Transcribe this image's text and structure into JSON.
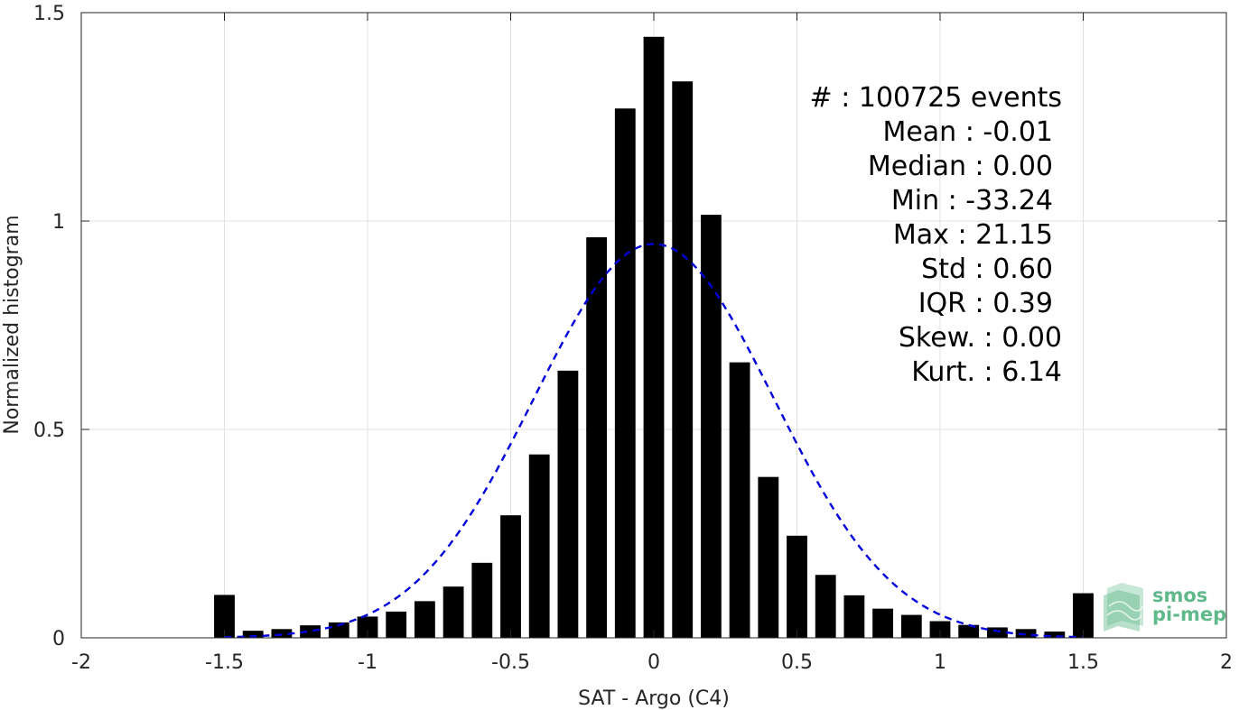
{
  "chart_data": {
    "type": "bar",
    "xlabel": "SAT - Argo (C4)",
    "ylabel": "Normalized histogram",
    "xlim": [
      -2,
      2
    ],
    "ylim": [
      0,
      1.5
    ],
    "xticks": [
      "-2",
      "-1.5",
      "-1",
      "-0.5",
      "0",
      "0.5",
      "1",
      "1.5",
      "2"
    ],
    "yticks": [
      "0",
      "0.5",
      "1",
      "1.5"
    ],
    "grid": true,
    "bar_color": "#000000",
    "bin_width": 0.1,
    "x": [
      -1.5,
      -1.4,
      -1.3,
      -1.2,
      -1.1,
      -1.0,
      -0.9,
      -0.8,
      -0.7,
      -0.6,
      -0.5,
      -0.4,
      -0.3,
      -0.2,
      -0.1,
      0.0,
      0.1,
      0.2,
      0.3,
      0.4,
      0.5,
      0.6,
      0.7,
      0.8,
      0.9,
      1.0,
      1.1,
      1.2,
      1.3,
      1.4,
      1.5
    ],
    "values": [
      0.103,
      0.017,
      0.021,
      0.03,
      0.037,
      0.051,
      0.063,
      0.088,
      0.123,
      0.18,
      0.294,
      0.44,
      0.641,
      0.961,
      1.27,
      1.442,
      1.335,
      1.015,
      0.661,
      0.386,
      0.245,
      0.151,
      0.102,
      0.07,
      0.055,
      0.04,
      0.031,
      0.025,
      0.021,
      0.015,
      0.107
    ],
    "fit_curve": {
      "type": "gaussian",
      "color": "#0000dd",
      "style": "dashed",
      "peak": 0.945,
      "mean": 0.0,
      "std": 0.42,
      "x_range": [
        -1.5,
        1.5
      ]
    },
    "stats": [
      {
        "label": "#  : 100725 events"
      },
      {
        "label": "Mean : -0.01"
      },
      {
        "label": "Median : 0.00"
      },
      {
        "label": "Min : -33.24"
      },
      {
        "label": "Max : 21.15"
      },
      {
        "label": "Std : 0.60"
      },
      {
        "label": "IQR : 0.39"
      },
      {
        "label": "Skew. : 0.00"
      },
      {
        "label": "Kurt. : 6.14"
      }
    ]
  },
  "logo": {
    "line1": "smos",
    "line2": "pi-mep",
    "color": "#5fb98a"
  }
}
